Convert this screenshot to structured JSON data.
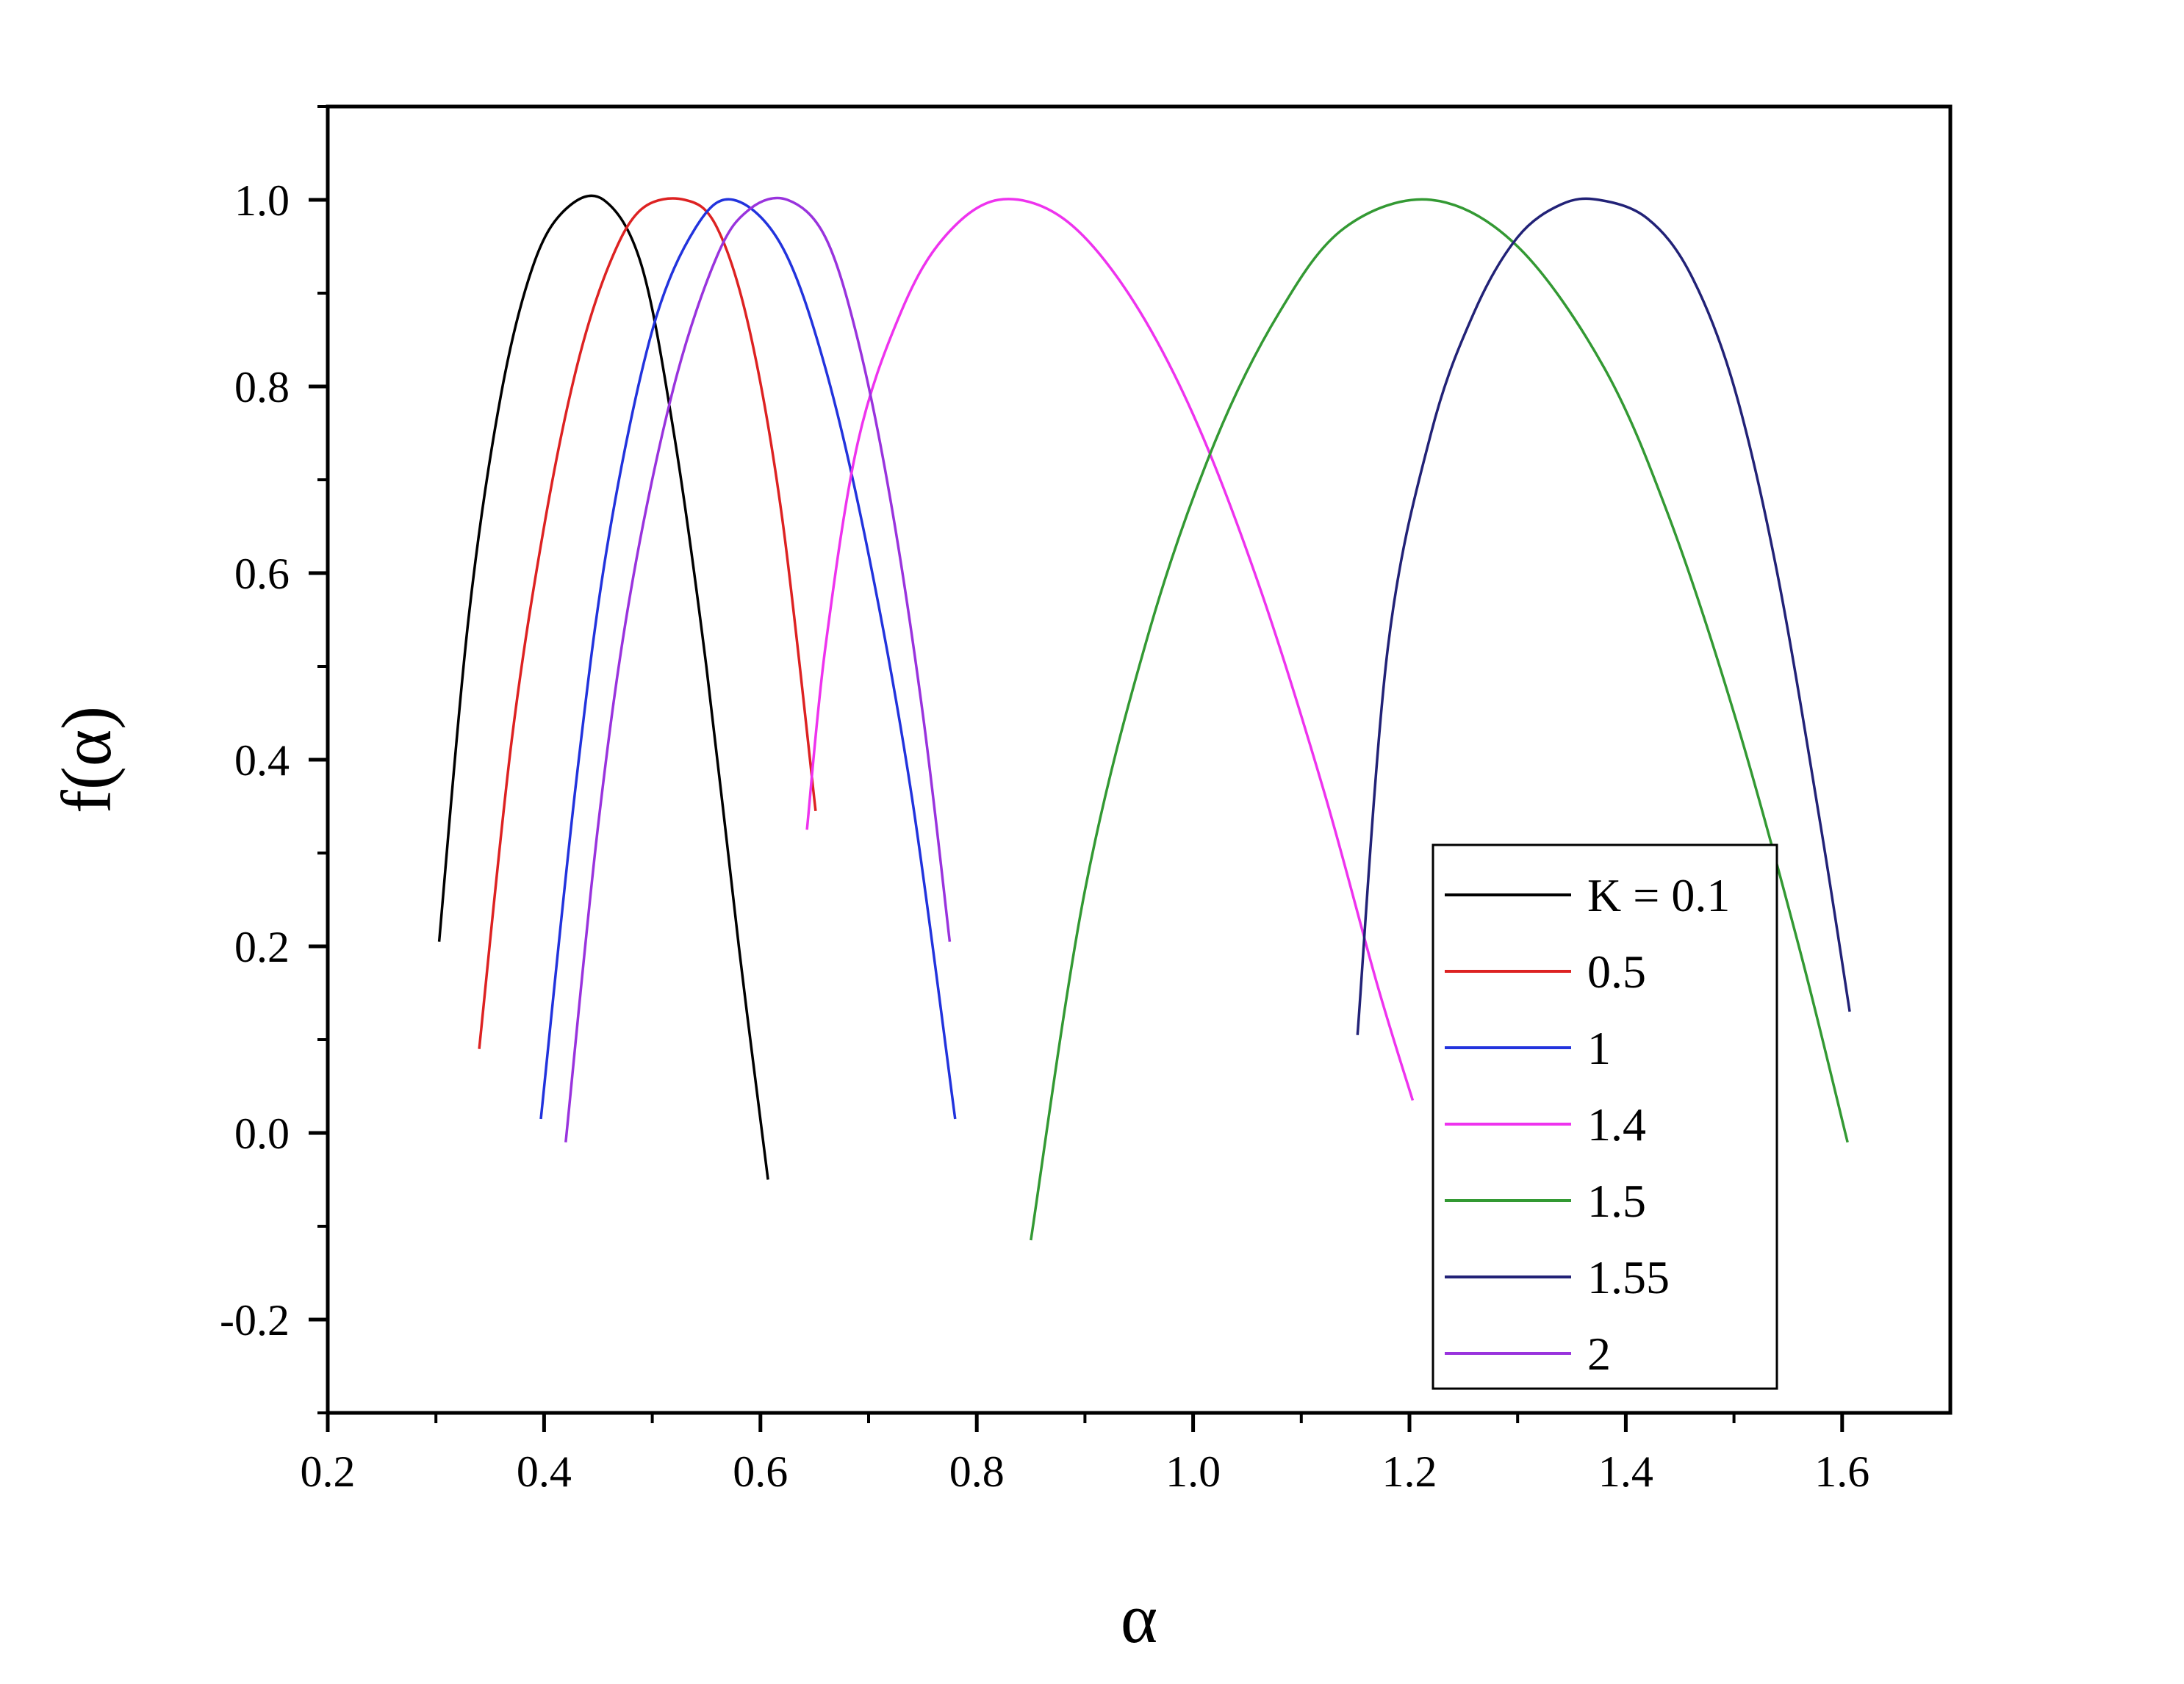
{
  "chart_data": {
    "type": "line",
    "title": "",
    "xlabel": "α",
    "ylabel": "f(α)",
    "xlim": [
      0.2,
      1.7
    ],
    "ylim": [
      -0.3,
      1.1
    ],
    "xticks": [
      0.2,
      0.4,
      0.6,
      0.8,
      1.0,
      1.2,
      1.4,
      1.6
    ],
    "xtick_labels": [
      "0.2",
      "0.4",
      "0.6",
      "0.8",
      "1.0",
      "1.2",
      "1.4",
      "1.6"
    ],
    "yticks": [
      -0.2,
      0.0,
      0.2,
      0.4,
      0.6,
      0.8,
      1.0
    ],
    "ytick_labels": [
      "-0.2",
      "0.0",
      "0.2",
      "0.4",
      "0.6",
      "0.8",
      "1.0"
    ],
    "grid": false,
    "legend_position": "bottom-right",
    "series": [
      {
        "name": "K = 0.1",
        "color": "#000000",
        "x": [
          0.303,
          0.33,
          0.36,
          0.39,
          0.42,
          0.455,
          0.49,
          0.52,
          0.55,
          0.58,
          0.607
        ],
        "y": [
          0.205,
          0.55,
          0.79,
          0.93,
          0.99,
          1.0,
          0.93,
          0.75,
          0.5,
          0.2,
          -0.05
        ]
      },
      {
        "name": "0.5",
        "color": "#dd2222",
        "x": [
          0.34,
          0.37,
          0.4,
          0.43,
          0.46,
          0.49,
          0.53,
          0.56,
          0.59,
          0.62,
          0.651
        ],
        "y": [
          0.09,
          0.42,
          0.65,
          0.82,
          0.93,
          0.99,
          1.0,
          0.97,
          0.86,
          0.66,
          0.345
        ]
      },
      {
        "name": "1",
        "color": "#2233dd",
        "x": [
          0.397,
          0.43,
          0.46,
          0.5,
          0.54,
          0.575,
          0.62,
          0.66,
          0.7,
          0.74,
          0.78
        ],
        "y": [
          0.015,
          0.38,
          0.64,
          0.86,
          0.97,
          1.0,
          0.95,
          0.82,
          0.62,
          0.36,
          0.015
        ]
      },
      {
        "name": "1.4",
        "color": "#ee33ee",
        "x": [
          0.643,
          0.66,
          0.69,
          0.73,
          0.77,
          0.82,
          0.88,
          0.94,
          1.0,
          1.06,
          1.12,
          1.17,
          1.203
        ],
        "y": [
          0.325,
          0.52,
          0.74,
          0.88,
          0.96,
          1.0,
          0.98,
          0.9,
          0.77,
          0.59,
          0.37,
          0.16,
          0.035
        ]
      },
      {
        "name": "1.5",
        "color": "#339933",
        "x": [
          0.85,
          0.9,
          0.96,
          1.02,
          1.08,
          1.14,
          1.22,
          1.3,
          1.38,
          1.44,
          1.5,
          1.56,
          1.605
        ],
        "y": [
          -0.115,
          0.26,
          0.54,
          0.74,
          0.88,
          0.97,
          1.0,
          0.95,
          0.82,
          0.66,
          0.45,
          0.2,
          -0.01
        ]
      },
      {
        "name": "1.55",
        "color": "#222277",
        "x": [
          1.152,
          1.18,
          1.22,
          1.26,
          1.3,
          1.34,
          1.375,
          1.42,
          1.46,
          1.5,
          1.54,
          1.58,
          1.607
        ],
        "y": [
          0.105,
          0.52,
          0.75,
          0.88,
          0.96,
          0.995,
          1.0,
          0.98,
          0.92,
          0.8,
          0.6,
          0.33,
          0.13
        ]
      },
      {
        "name": "2",
        "color": "#9933dd",
        "x": [
          0.42,
          0.45,
          0.48,
          0.52,
          0.56,
          0.59,
          0.625,
          0.66,
          0.69,
          0.72,
          0.75,
          0.775
        ],
        "y": [
          -0.01,
          0.33,
          0.58,
          0.8,
          0.94,
          0.99,
          1.0,
          0.96,
          0.85,
          0.68,
          0.45,
          0.205
        ]
      }
    ]
  }
}
